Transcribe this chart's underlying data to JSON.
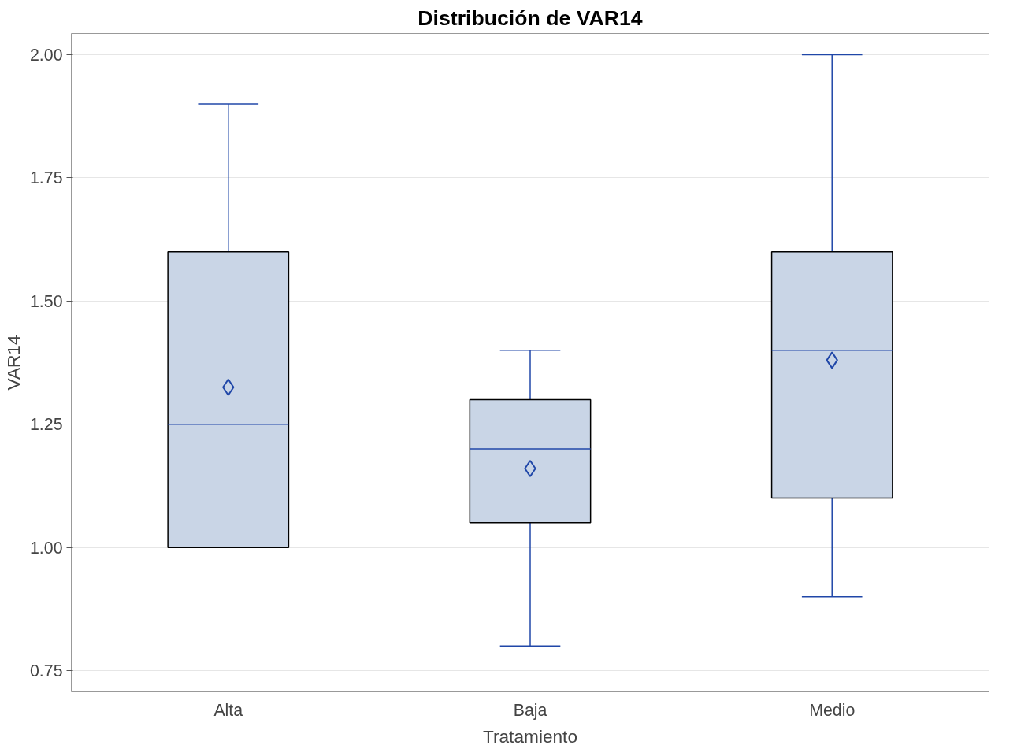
{
  "chart_data": {
    "type": "box",
    "title": "Distribución de VAR14",
    "xlabel": "Tratamiento",
    "ylabel": "VAR14",
    "categories": [
      "Alta",
      "Baja",
      "Medio"
    ],
    "boxes": [
      {
        "low": 1.0,
        "q1": 1.0,
        "median": 1.25,
        "q3": 1.6,
        "high": 1.9,
        "mean": 1.325
      },
      {
        "low": 0.8,
        "q1": 1.05,
        "median": 1.2,
        "q3": 1.3,
        "high": 1.4,
        "mean": 1.16
      },
      {
        "low": 0.9,
        "q1": 1.1,
        "median": 1.4,
        "q3": 1.6,
        "high": 2.0,
        "mean": 1.38
      }
    ],
    "color": "#c9d5e6",
    "marker": "diamond",
    "grid": "y",
    "ylim": [
      0.707,
      2.043
    ],
    "yticks": [
      {
        "value": 0.75,
        "label": "0.75"
      },
      {
        "value": 1.0,
        "label": "1.00"
      },
      {
        "value": 1.25,
        "label": "1.25"
      },
      {
        "value": 1.5,
        "label": "1.50"
      },
      {
        "value": 1.75,
        "label": "1.75"
      },
      {
        "value": 2.0,
        "label": "2.00"
      }
    ]
  }
}
